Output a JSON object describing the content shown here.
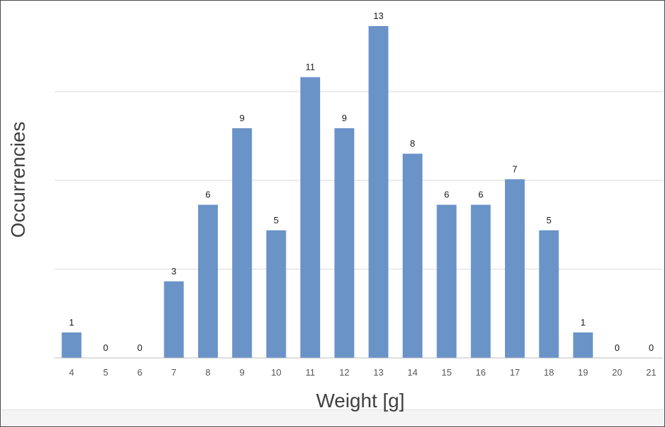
{
  "chart_data": {
    "type": "bar",
    "categories": [
      "4",
      "5",
      "6",
      "7",
      "8",
      "9",
      "10",
      "11",
      "12",
      "13",
      "14",
      "15",
      "16",
      "17",
      "18",
      "19",
      "20",
      "21"
    ],
    "values": [
      1,
      0,
      0,
      3,
      6,
      9,
      5,
      11,
      9,
      13,
      8,
      6,
      6,
      7,
      5,
      1,
      0,
      0
    ],
    "title": "",
    "xlabel": "Weight [g]",
    "ylabel": "Occurrencies",
    "ylim": [
      0,
      14
    ],
    "grid": true,
    "bar_color": "#6a93c8",
    "legend": "none"
  }
}
